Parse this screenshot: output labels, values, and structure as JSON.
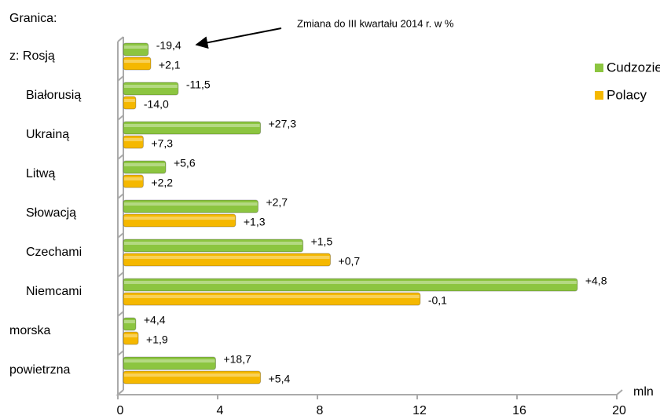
{
  "chart_data": {
    "type": "bar",
    "orientation": "horizontal",
    "header": "Granica:",
    "annotation": "Zmiana do III kwartału 2014 r. w %",
    "x_axis_label": "mln",
    "categories": [
      "z: Rosją",
      "Białorusią",
      "Ukrainą",
      "Litwą",
      "Słowacją",
      "Czechami",
      "Niemcami",
      "morska",
      "powietrzna"
    ],
    "series": [
      {
        "name": "Cudzoziemcy",
        "color": "#8cc540",
        "values": [
          1.0,
          2.2,
          5.5,
          1.7,
          5.4,
          7.2,
          18.2,
          0.5,
          3.7
        ],
        "change_labels": [
          "-19,4",
          "-11,5",
          "+27,3",
          "+5,6",
          "+2,7",
          "+1,5",
          "+4,8",
          "+4,4",
          "+18,7"
        ]
      },
      {
        "name": "Polacy",
        "color": "#f5b800",
        "values": [
          1.1,
          0.5,
          0.8,
          0.8,
          4.5,
          8.3,
          11.9,
          0.6,
          5.5
        ],
        "change_labels": [
          "+2,1",
          "-14,0",
          "+7,3",
          "+2,2",
          "+1,3",
          "+0,7",
          "-0,1",
          "+1,9",
          "+5,4"
        ]
      }
    ],
    "xlim": [
      0,
      20
    ],
    "xticks": [
      0,
      4,
      8,
      12,
      16,
      20
    ],
    "legend": "right"
  }
}
